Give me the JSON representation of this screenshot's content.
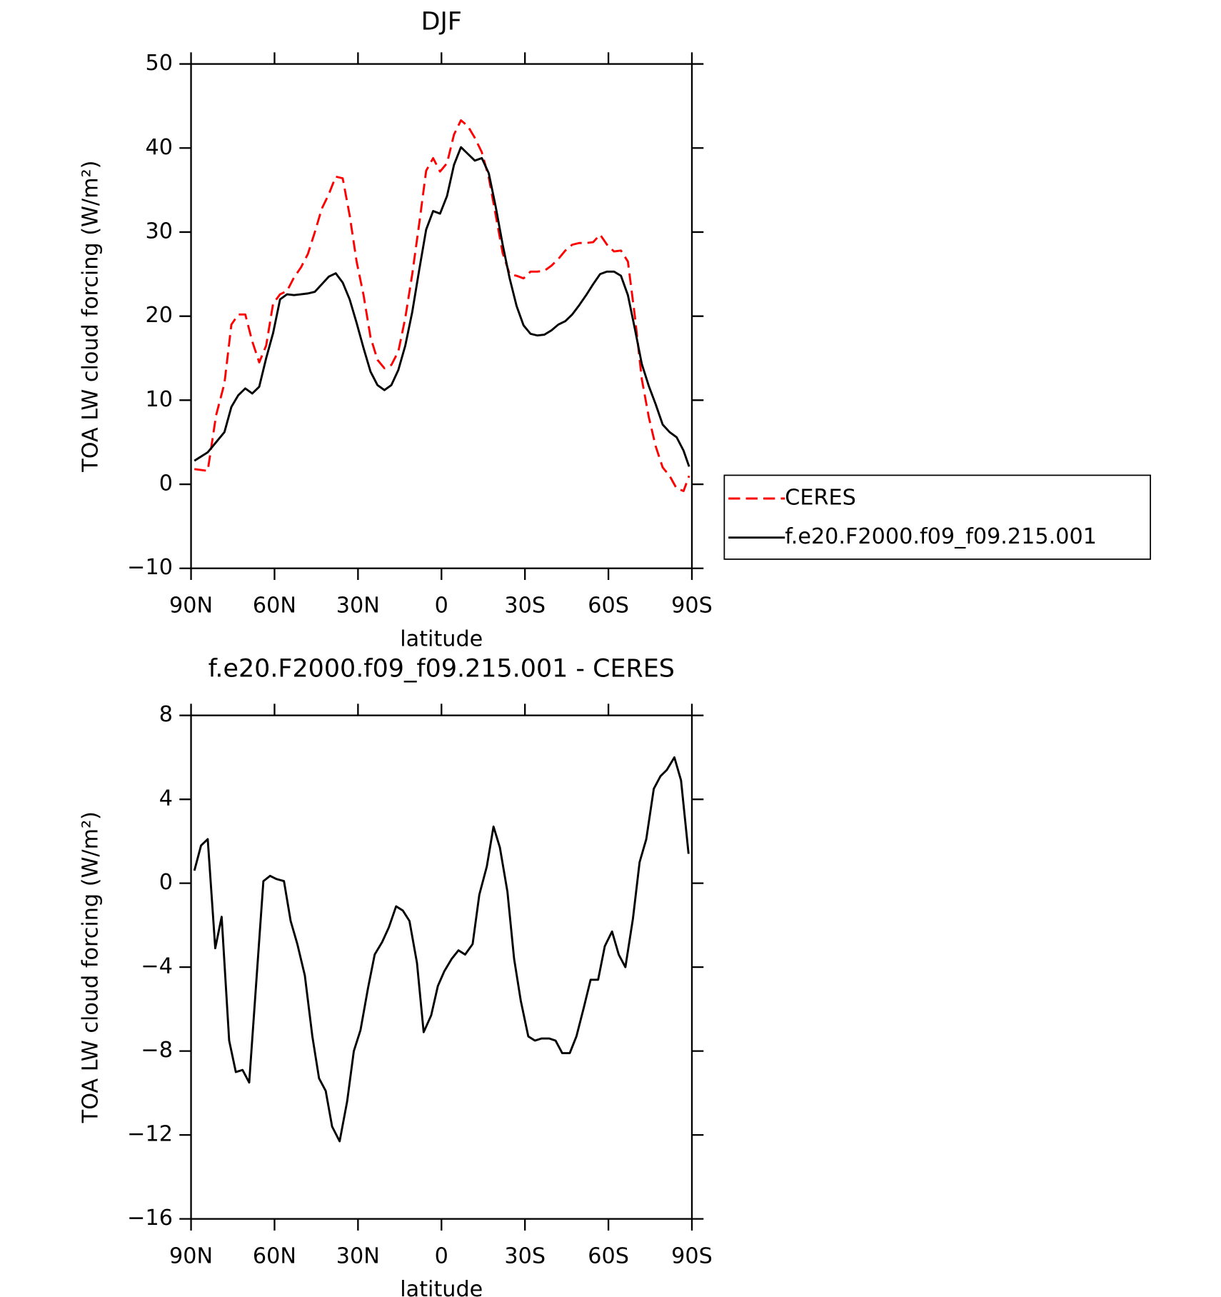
{
  "chart_data": [
    {
      "type": "line",
      "title": "DJF",
      "xlabel": "latitude",
      "ylabel": "TOA LW cloud forcing (W/m²)",
      "x": [
        88.8,
        84,
        81,
        78,
        75.5,
        73,
        70.5,
        68,
        65.5,
        63,
        60.5,
        58,
        55.5,
        53,
        50.5,
        48,
        45.5,
        43,
        40.5,
        38,
        35.5,
        33,
        30.5,
        28,
        25.5,
        23,
        20.5,
        18,
        15.5,
        13,
        10.5,
        8,
        5.5,
        3,
        0.5,
        -2,
        -4.5,
        -7,
        -9.5,
        -12,
        -14.5,
        -17,
        -19.5,
        -22,
        -24.5,
        -27,
        -29.5,
        -32,
        -34.5,
        -37,
        -39.5,
        -42,
        -44.5,
        -47,
        -49.5,
        -52,
        -54.5,
        -57,
        -59.5,
        -62,
        -64.5,
        -67,
        -69.5,
        -72,
        -74.5,
        -77,
        -79.5,
        -82,
        -84.5,
        -87,
        -89
      ],
      "series": [
        {
          "name": "CERES",
          "color": "#ff0000",
          "dash": true,
          "values": [
            1.8,
            1.6,
            8.2,
            12,
            19.0,
            20.2,
            20.2,
            17.0,
            14.5,
            16.5,
            21.5,
            22.6,
            23.0,
            24.6,
            25.8,
            27.4,
            30.0,
            32.8,
            34.5,
            36.6,
            36.4,
            32.0,
            26.5,
            22.5,
            17.5,
            14.8,
            13.8,
            14.2,
            15.8,
            19.8,
            25.0,
            31.0,
            37.3,
            38.8,
            37.2,
            38.2,
            41.6,
            43.3,
            42.6,
            41.2,
            39.5,
            36.5,
            32.0,
            27.5,
            25.0,
            24.8,
            24.5,
            25.3,
            25.3,
            25.4,
            26.0,
            26.8,
            27.8,
            28.5,
            28.7,
            28.7,
            28.8,
            29.7,
            28.5,
            27.7,
            27.8,
            26.5,
            20.0,
            12.5,
            8.0,
            4.5,
            2.0,
            1.0,
            -0.5,
            -0.8,
            1.0
          ]
        },
        {
          "name": "f.e20.F2000.f09_f09.215.001",
          "color": "#000000",
          "dash": false,
          "values": [
            2.8,
            3.8,
            5.0,
            6.2,
            9.2,
            10.6,
            11.4,
            10.8,
            11.6,
            15.0,
            18.0,
            22.0,
            22.6,
            22.5,
            22.6,
            22.7,
            22.9,
            23.8,
            24.7,
            25.1,
            24.0,
            22.0,
            19.2,
            16.2,
            13.4,
            11.8,
            11.2,
            11.8,
            13.6,
            16.5,
            20.5,
            25.5,
            30.3,
            32.5,
            32.2,
            34.3,
            38.0,
            40.1,
            39.3,
            38.5,
            38.8,
            37.0,
            33.0,
            28.5,
            24.5,
            21.2,
            18.9,
            17.9,
            17.7,
            17.8,
            18.3,
            19.0,
            19.4,
            20.2,
            21.3,
            22.5,
            23.8,
            25.0,
            25.3,
            25.3,
            24.8,
            22.5,
            18.5,
            14.3,
            11.7,
            9.5,
            7.1,
            6.2,
            5.6,
            4.0,
            2.1
          ]
        }
      ],
      "xlim": [
        90,
        -90
      ],
      "xticks": [
        {
          "value": 90,
          "label": "90N"
        },
        {
          "value": 60,
          "label": "60N"
        },
        {
          "value": 30,
          "label": "30N"
        },
        0,
        {
          "value": -30,
          "label": "30S"
        },
        {
          "value": -60,
          "label": "60S"
        },
        {
          "value": -90,
          "label": "90S"
        }
      ],
      "ylim": [
        -10,
        50
      ],
      "yticks": [
        -10,
        0,
        10,
        20,
        30,
        40,
        50
      ],
      "legend": "right"
    },
    {
      "type": "line",
      "title": "f.e20.F2000.f09_f09.215.001 - CERES",
      "xlabel": "latitude",
      "ylabel": "TOA LW cloud forcing (W/m²)",
      "x": [
        88.8,
        86.4,
        84,
        81.3,
        79,
        76.3,
        73.9,
        71.5,
        69.1,
        64,
        61.6,
        59.3,
        56.6,
        54.2,
        51.8,
        49.1,
        46.4,
        44,
        41.6,
        39.3,
        36.6,
        33.9,
        31.5,
        29.1,
        26.4,
        24,
        21.3,
        18.9,
        16.3,
        13.9,
        11.5,
        8.8,
        6.4,
        3.7,
        1.3,
        -1.0,
        -3.7,
        -6.1,
        -8.5,
        -11.2,
        -13.6,
        -16.3,
        -18.7,
        -21,
        -23.7,
        -26.1,
        -28.5,
        -31.2,
        -33.6,
        -36,
        -38.7,
        -41,
        -43.4,
        -46.1,
        -48.5,
        -51.2,
        -53.6,
        -56.3,
        -58.7,
        -61.3,
        -63.7,
        -66.1,
        -68.8,
        -71.2,
        -73.6,
        -76.3,
        -78.7,
        -81,
        -83.7,
        -86.1,
        -88.8
      ],
      "series": [
        {
          "color": "#000000",
          "dash": false,
          "values": [
            0.6,
            1.8,
            2.1,
            -3.1,
            -1.6,
            -7.5,
            -9.0,
            -8.9,
            -9.5,
            0.1,
            0.35,
            0.2,
            0.1,
            -1.8,
            -2.9,
            -4.4,
            -7.3,
            -9.3,
            -9.9,
            -11.6,
            -12.3,
            -10.4,
            -8.0,
            -7.0,
            -5.0,
            -3.4,
            -2.8,
            -2.1,
            -1.1,
            -1.3,
            -1.8,
            -3.8,
            -7.1,
            -6.3,
            -4.9,
            -4.2,
            -3.6,
            -3.2,
            -3.4,
            -2.9,
            -0.55,
            0.8,
            2.7,
            1.7,
            -0.4,
            -3.6,
            -5.6,
            -7.3,
            -7.5,
            -7.4,
            -7.4,
            -7.5,
            -8.1,
            -8.1,
            -7.3,
            -5.9,
            -4.6,
            -4.6,
            -3.0,
            -2.3,
            -3.4,
            -4.0,
            -1.7,
            1.0,
            2.1,
            4.5,
            5.1,
            5.4,
            6.0,
            4.9,
            1.4
          ]
        }
      ],
      "xlim": [
        90,
        -90
      ],
      "xticks": [
        {
          "value": 90,
          "label": "90N"
        },
        {
          "value": 60,
          "label": "60N"
        },
        {
          "value": 30,
          "label": "30N"
        },
        0,
        {
          "value": -30,
          "label": "30S"
        },
        {
          "value": -60,
          "label": "60S"
        },
        {
          "value": -90,
          "label": "90S"
        }
      ],
      "ylim": [
        -16,
        8
      ],
      "yticks": [
        -16,
        -12,
        -8,
        -4,
        0,
        4,
        8
      ]
    }
  ]
}
